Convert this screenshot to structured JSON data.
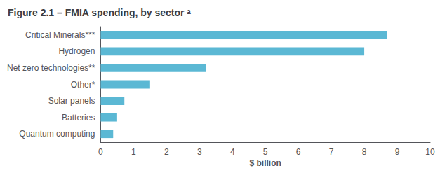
{
  "chart_data": {
    "type": "bar",
    "orientation": "horizontal",
    "title": "Figure 2.1 – FMIA spending, by sector ᵃ",
    "categories": [
      "Quantum computing",
      "Batteries",
      "Solar panels",
      "Other*",
      "Net zero technologies**",
      "Hydrogen",
      "Critical Minerals***"
    ],
    "values": [
      0.38,
      0.5,
      0.72,
      1.5,
      3.2,
      8.0,
      8.7
    ],
    "color": "#5bb8d4",
    "xlabel": "$ billion",
    "xlim": [
      0,
      10
    ],
    "xticks": [
      0,
      1,
      2,
      3,
      4,
      5,
      6,
      7,
      8,
      9,
      10
    ],
    "grid": false
  }
}
